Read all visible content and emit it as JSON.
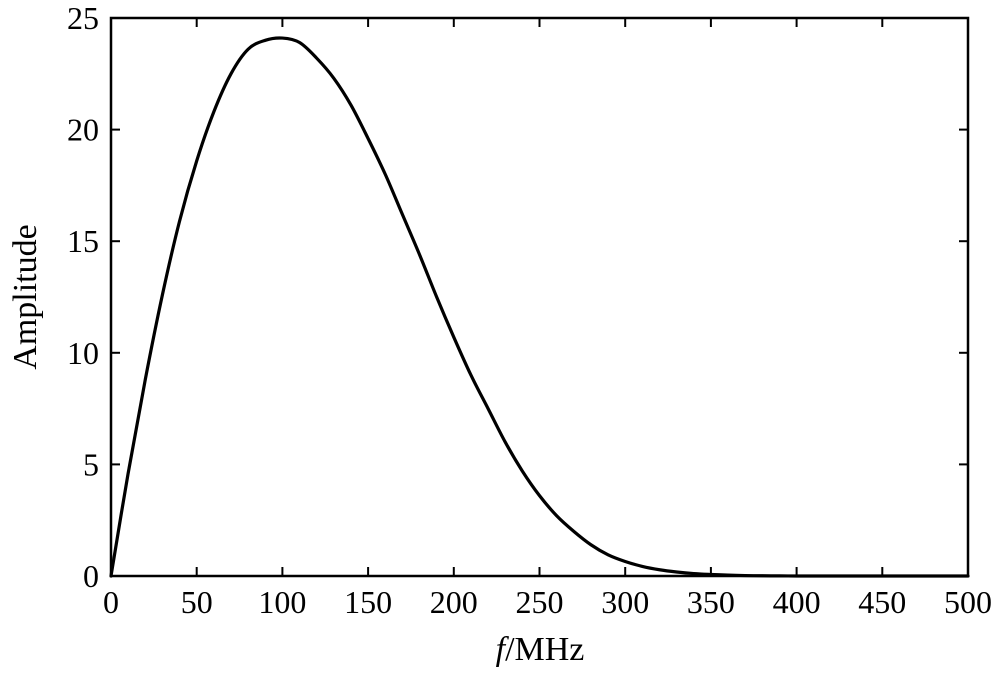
{
  "chart_data": {
    "type": "line",
    "title": "",
    "xlabel_var": "f",
    "xlabel_unit": "/MHz",
    "ylabel": "Amplitude",
    "xlim": [
      0,
      500
    ],
    "ylim": [
      0,
      25
    ],
    "xticks": [
      0,
      50,
      100,
      150,
      200,
      250,
      300,
      350,
      400,
      450,
      500
    ],
    "yticks": [
      0,
      5,
      10,
      15,
      20,
      25
    ],
    "grid": false,
    "legend": "none",
    "series": [
      {
        "color": "#000000",
        "x": [
          0,
          10,
          20,
          30,
          40,
          50,
          60,
          70,
          80,
          90,
          100,
          110,
          120,
          130,
          140,
          150,
          160,
          170,
          180,
          190,
          200,
          210,
          220,
          230,
          240,
          250,
          260,
          270,
          280,
          290,
          300,
          310,
          320,
          330,
          340,
          350,
          360,
          370,
          380,
          390,
          400,
          410,
          420,
          430,
          440,
          450,
          460,
          470,
          480,
          490,
          500
        ],
        "y": [
          0,
          4.6,
          8.8,
          12.6,
          15.9,
          18.6,
          20.8,
          22.5,
          23.6,
          24.0,
          24.1,
          23.9,
          23.2,
          22.3,
          21.1,
          19.6,
          18.0,
          16.2,
          14.4,
          12.5,
          10.7,
          9.0,
          7.5,
          6.0,
          4.7,
          3.6,
          2.7,
          2.0,
          1.4,
          0.95,
          0.65,
          0.43,
          0.28,
          0.18,
          0.11,
          0.07,
          0.04,
          0.02,
          0.01,
          0.005,
          0,
          0,
          0,
          0,
          0,
          0,
          0,
          0,
          0,
          0,
          0
        ]
      }
    ]
  }
}
